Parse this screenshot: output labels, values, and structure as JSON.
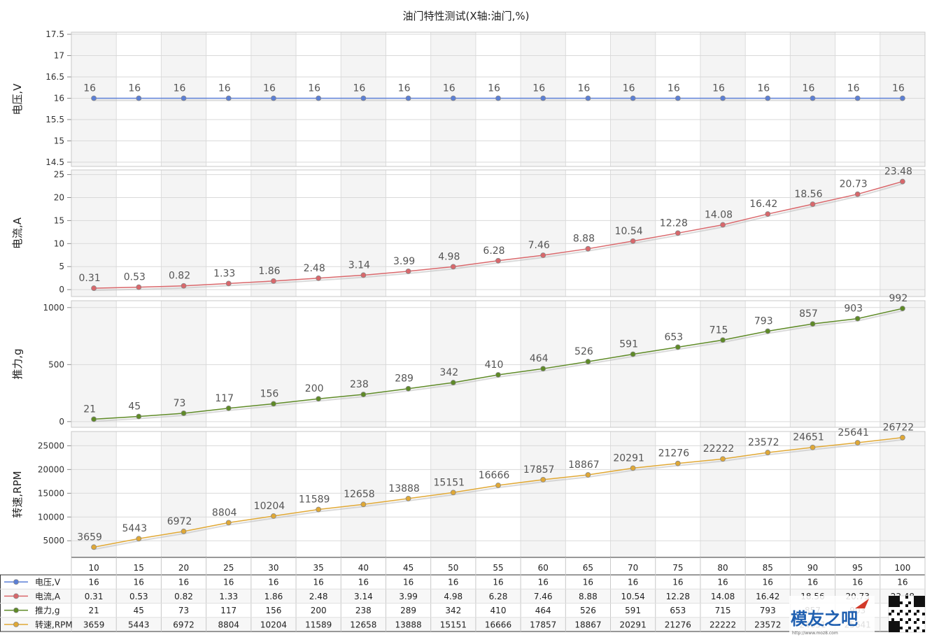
{
  "chart_data": {
    "type": "line",
    "title": "油门特性测试(X轴:油门,%)",
    "xlabel": "",
    "categories": [
      "10",
      "15",
      "20",
      "25",
      "30",
      "35",
      "40",
      "45",
      "50",
      "55",
      "60",
      "65",
      "70",
      "75",
      "80",
      "85",
      "90",
      "95",
      "100"
    ],
    "grid": true,
    "legend": "table-left-bottom",
    "panels": [
      {
        "name": "电压,V",
        "ylabel": "电压,V",
        "color": "#5b7fd6",
        "ylim": [
          14.4,
          17.55
        ],
        "ticks": [
          14.5,
          15,
          15.5,
          16,
          16.5,
          17,
          17.5
        ],
        "tick_labels": [
          "14.5",
          "15",
          "15.5",
          "16",
          "16.5",
          "17",
          "17.5"
        ],
        "values": [
          16,
          16,
          16,
          16,
          16,
          16,
          16,
          16,
          16,
          16,
          16,
          16,
          16,
          16,
          16,
          16,
          16,
          16,
          16
        ],
        "labels": [
          "16",
          "16",
          "16",
          "16",
          "16",
          "16",
          "16",
          "16",
          "16",
          "16",
          "16",
          "16",
          "16",
          "16",
          "16",
          "16",
          "16",
          "16",
          "16"
        ]
      },
      {
        "name": "电流,A",
        "ylabel": "电流,A",
        "color": "#d9676b",
        "ylim": [
          -1.5,
          26
        ],
        "ticks": [
          0,
          5,
          10,
          15,
          20,
          25
        ],
        "tick_labels": [
          "0",
          "5",
          "10",
          "15",
          "20",
          "25"
        ],
        "values": [
          0.31,
          0.53,
          0.82,
          1.33,
          1.86,
          2.48,
          3.14,
          3.99,
          4.98,
          6.28,
          7.46,
          8.88,
          10.54,
          12.28,
          14.08,
          16.42,
          18.56,
          20.73,
          23.48
        ],
        "labels": [
          "0.31",
          "0.53",
          "0.82",
          "1.33",
          "1.86",
          "2.48",
          "3.14",
          "3.99",
          "4.98",
          "6.28",
          "7.46",
          "8.88",
          "10.54",
          "12.28",
          "14.08",
          "16.42",
          "18.56",
          "20.73",
          "23.48"
        ]
      },
      {
        "name": "推力,g",
        "ylabel": "推力,g",
        "color": "#5e8a26",
        "ylim": [
          -50,
          1060
        ],
        "ticks": [
          0,
          500,
          1000
        ],
        "tick_labels": [
          "0",
          "500",
          "1000"
        ],
        "values": [
          21,
          45,
          73,
          117,
          156,
          200,
          238,
          289,
          342,
          410,
          464,
          526,
          591,
          653,
          715,
          793,
          857,
          903,
          992
        ],
        "labels": [
          "21",
          "45",
          "73",
          "117",
          "156",
          "200",
          "238",
          "289",
          "342",
          "410",
          "464",
          "526",
          "591",
          "653",
          "715",
          "793",
          "857",
          "903",
          "992"
        ]
      },
      {
        "name": "转速,RPM",
        "ylabel": "转速,RPM",
        "color": "#e0a835",
        "ylim": [
          1500,
          28000
        ],
        "ticks": [
          5000,
          10000,
          15000,
          20000,
          25000
        ],
        "tick_labels": [
          "5000",
          "10000",
          "15000",
          "20000",
          "25000"
        ],
        "values": [
          3659,
          5443,
          6972,
          8804,
          10204,
          11589,
          12658,
          13888,
          15151,
          16666,
          17857,
          18867,
          20291,
          21276,
          22222,
          23572,
          24651,
          25641,
          26722
        ],
        "labels": [
          "3659",
          "5443",
          "6972",
          "8804",
          "10204",
          "11589",
          "12658",
          "13888",
          "15151",
          "16666",
          "17857",
          "18867",
          "20291",
          "21276",
          "22222",
          "23572",
          "24651",
          "25641",
          "26722"
        ]
      }
    ],
    "table_rows": [
      [
        "16",
        "16",
        "16",
        "16",
        "16",
        "16",
        "16",
        "16",
        "16",
        "16",
        "16",
        "16",
        "16",
        "16",
        "16",
        "16",
        "16",
        "16",
        "16"
      ],
      [
        "0.31",
        "0.53",
        "0.82",
        "1.33",
        "1.86",
        "2.48",
        "3.14",
        "3.99",
        "4.98",
        "6.28",
        "7.46",
        "8.88",
        "10.54",
        "12.28",
        "14.08",
        "16.42",
        "18.56",
        "20.73",
        "23.48"
      ],
      [
        "21",
        "45",
        "73",
        "117",
        "156",
        "200",
        "238",
        "289",
        "342",
        "410",
        "464",
        "526",
        "591",
        "653",
        "715",
        "793",
        "857",
        "903",
        "992"
      ],
      [
        "3659",
        "5443",
        "6972",
        "8804",
        "10204",
        "11589",
        "12658",
        "13888",
        "15151",
        "16666",
        "17857",
        "18867",
        "20291",
        "21276",
        "22222",
        "23572",
        "24651",
        "25641",
        "26722"
      ]
    ]
  },
  "watermark": {
    "logo_text": "模友之吧",
    "site_text": "http://www.moz8.com"
  }
}
